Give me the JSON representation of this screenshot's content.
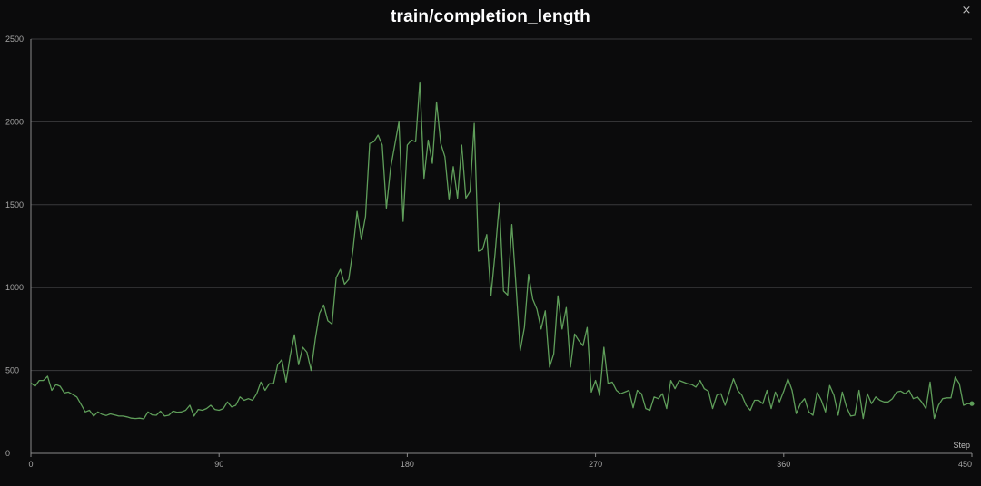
{
  "window": {
    "close_glyph": "×"
  },
  "chart_data": {
    "type": "line",
    "title": "train/completion_length",
    "xlabel": "Step",
    "ylabel": "",
    "xlim": [
      0,
      450
    ],
    "ylim": [
      0,
      2500
    ],
    "xticks": [
      0,
      90,
      180,
      270,
      360,
      450
    ],
    "yticks": [
      0,
      500,
      1000,
      1500,
      2000,
      2500
    ],
    "grid": true,
    "series": [
      {
        "color": "#5f9e5a",
        "x": [
          0,
          2,
          4,
          6,
          8,
          10,
          12,
          14,
          16,
          18,
          20,
          22,
          24,
          26,
          28,
          30,
          32,
          34,
          36,
          38,
          40,
          42,
          44,
          46,
          48,
          50,
          52,
          54,
          56,
          58,
          60,
          62,
          64,
          66,
          68,
          70,
          72,
          74,
          76,
          78,
          80,
          82,
          84,
          86,
          88,
          90,
          92,
          94,
          96,
          98,
          100,
          102,
          104,
          106,
          108,
          110,
          112,
          114,
          116,
          118,
          120,
          122,
          124,
          126,
          128,
          130,
          132,
          134,
          136,
          138,
          140,
          142,
          144,
          146,
          148,
          150,
          152,
          154,
          156,
          158,
          160,
          162,
          164,
          166,
          168,
          170,
          172,
          174,
          176,
          178,
          180,
          182,
          184,
          186,
          188,
          190,
          192,
          194,
          196,
          198,
          200,
          202,
          204,
          206,
          208,
          210,
          212,
          214,
          216,
          218,
          220,
          222,
          224,
          226,
          228,
          230,
          232,
          234,
          236,
          238,
          240,
          242,
          244,
          246,
          248,
          250,
          252,
          254,
          256,
          258,
          260,
          262,
          264,
          266,
          268,
          270,
          272,
          274,
          276,
          278,
          280,
          282,
          284,
          286,
          288,
          290,
          292,
          294,
          296,
          298,
          300,
          302,
          304,
          306,
          308,
          310,
          312,
          314,
          316,
          318,
          320,
          322,
          324,
          326,
          328,
          330,
          332,
          334,
          336,
          338,
          340,
          342,
          344,
          346,
          348,
          350,
          352,
          354,
          356,
          358,
          360,
          362,
          364,
          366,
          368,
          370,
          372,
          374,
          376,
          378,
          380,
          382,
          384,
          386,
          388,
          390,
          392,
          394,
          396,
          398,
          400,
          402,
          404,
          406,
          408,
          410,
          412,
          414,
          416,
          418,
          420,
          422,
          424,
          426,
          428,
          430,
          432,
          434,
          436,
          438,
          440,
          442,
          444,
          446,
          448,
          450
        ],
        "y": [
          425,
          405,
          440,
          440,
          465,
          380,
          415,
          405,
          365,
          370,
          355,
          340,
          295,
          250,
          260,
          225,
          250,
          235,
          228,
          238,
          232,
          225,
          225,
          220,
          212,
          210,
          212,
          208,
          250,
          232,
          230,
          255,
          225,
          230,
          255,
          248,
          250,
          260,
          290,
          225,
          265,
          260,
          270,
          290,
          265,
          260,
          270,
          310,
          280,
          290,
          340,
          320,
          330,
          320,
          360,
          430,
          380,
          420,
          420,
          535,
          565,
          430,
          590,
          715,
          535,
          640,
          610,
          500,
          690,
          845,
          895,
          800,
          780,
          1060,
          1110,
          1020,
          1050,
          1225,
          1460,
          1290,
          1430,
          1870,
          1880,
          1920,
          1860,
          1480,
          1720,
          1860,
          2000,
          1400,
          1860,
          1890,
          1880,
          2240,
          1660,
          1890,
          1750,
          2120,
          1870,
          1790,
          1530,
          1730,
          1540,
          1860,
          1540,
          1580,
          1990,
          1220,
          1230,
          1320,
          950,
          1210,
          1510,
          980,
          955,
          1380,
          1010,
          620,
          760,
          1080,
          930,
          870,
          750,
          860,
          520,
          600,
          950,
          750,
          880,
          520,
          720,
          680,
          650,
          760,
          370,
          440,
          350,
          640,
          420,
          430,
          380,
          360,
          370,
          380,
          275,
          380,
          360,
          270,
          260,
          340,
          330,
          360,
          270,
          440,
          390,
          440,
          430,
          420,
          415,
          400,
          440,
          390,
          375,
          270,
          350,
          360,
          290,
          370,
          450,
          380,
          350,
          290,
          260,
          320,
          320,
          300,
          380,
          270,
          370,
          310,
          375,
          450,
          380,
          240,
          300,
          330,
          250,
          230,
          370,
          320,
          250,
          410,
          350,
          230,
          370,
          280,
          225,
          230,
          380,
          210,
          360,
          300,
          340,
          320,
          310,
          310,
          330,
          370,
          375,
          360,
          380,
          330,
          340,
          310,
          270,
          430,
          210,
          290,
          330,
          335,
          335,
          460,
          420,
          290,
          300,
          300
        ]
      }
    ]
  }
}
